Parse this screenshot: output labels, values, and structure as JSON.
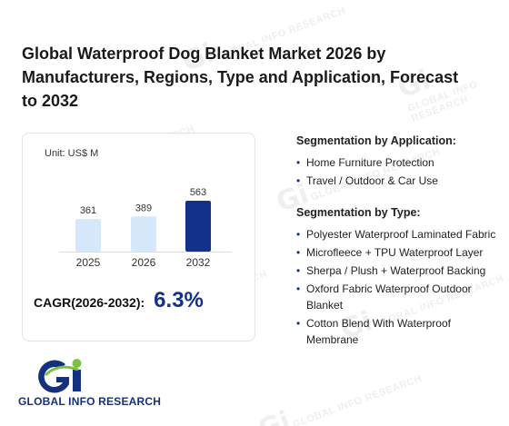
{
  "title": "Global Waterproof Dog Blanket Market 2026 by Manufacturers, Regions, Type and Application, Forecast to 2032",
  "watermark_text": "GLOBAL INFO RESEARCH",
  "watermark_logo": "Gi",
  "chart_data": {
    "type": "bar",
    "unit_label": "Unit: US$ M",
    "categories": [
      "2025",
      "2026",
      "2032"
    ],
    "values": [
      361,
      389,
      563
    ],
    "colors": [
      "#d6e8fb",
      "#d6e8fb",
      "#13318a"
    ],
    "cagr_label": "CAGR(2026-2032):",
    "cagr_value": "6.3%"
  },
  "segmentation": {
    "application": {
      "heading": "Segmentation by Application:",
      "items": [
        "Home Furniture Protection",
        "Travel / Outdoor & Car Use"
      ]
    },
    "type": {
      "heading": "Segmentation by Type:",
      "items": [
        "Polyester Waterproof Laminated Fabric",
        "Microfleece + TPU Waterproof Layer",
        "Sherpa / Plush + Waterproof Backing",
        "Oxford Fabric Waterproof Outdoor Blanket",
        "Cotton Blend With Waterproof Membrane"
      ]
    }
  },
  "logo": {
    "text": "GLOBAL INFO RESEARCH",
    "colors": {
      "blue": "#15307d",
      "green": "#7cc242"
    }
  }
}
